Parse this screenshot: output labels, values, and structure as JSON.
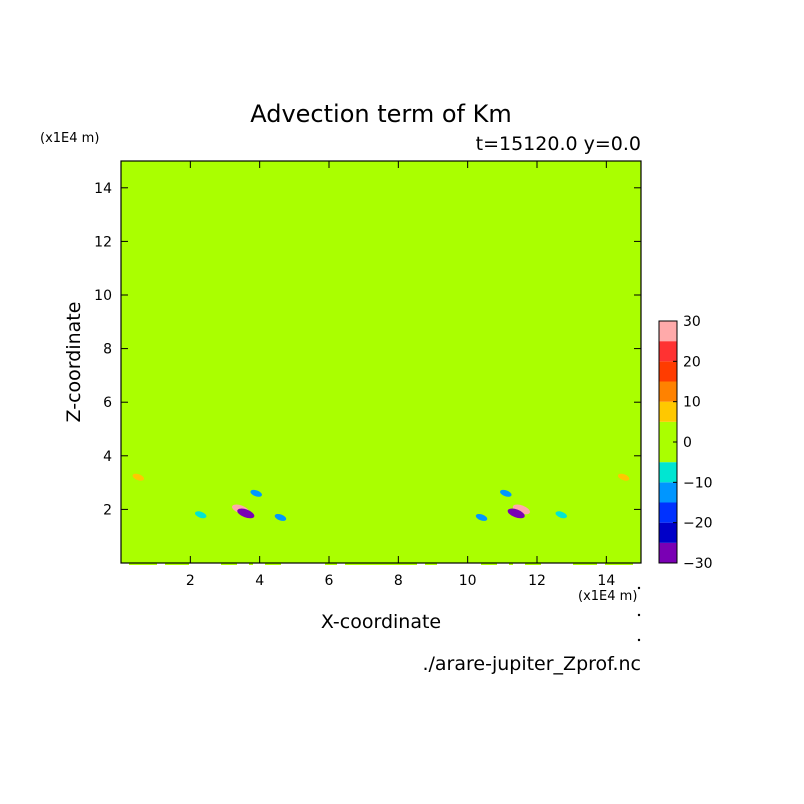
{
  "chart_data": {
    "type": "heatmap",
    "title": "Advection term of Km",
    "subtitle": "t=15120.0 y=0.0",
    "xlabel": "X-coordinate",
    "ylabel": "Z-coordinate",
    "x_unit": "(x1E4 m)",
    "y_unit": "(x1E4 m)",
    "xlim": [
      0,
      15
    ],
    "ylim": [
      0,
      15
    ],
    "xticks": [
      2,
      4,
      6,
      8,
      10,
      12,
      14
    ],
    "yticks": [
      2,
      4,
      6,
      8,
      10,
      12,
      14
    ],
    "colorbar": {
      "levels": [
        -30,
        -25,
        -20,
        -15,
        -10,
        -5,
        0,
        5,
        10,
        15,
        20,
        25,
        30
      ],
      "tick_labels": [
        "30",
        "20",
        "10",
        "0",
        "−10",
        "−20",
        "−30"
      ],
      "tick_values": [
        30,
        20,
        10,
        0,
        -10,
        -20,
        -30
      ],
      "colors": [
        "#7a00b4",
        "#0000c8",
        "#0032ff",
        "#0096ff",
        "#00e6d2",
        "#aaff00",
        "#aaff00",
        "#ffc800",
        "#ff8200",
        "#ff3c00",
        "#ff3232",
        "#ffaaaa"
      ]
    },
    "features": [
      {
        "x": 3.45,
        "z": 2.0,
        "value": 28
      },
      {
        "x": 3.6,
        "z": 1.85,
        "value": -28
      },
      {
        "x": 11.55,
        "z": 2.0,
        "value": 28
      },
      {
        "x": 11.4,
        "z": 1.85,
        "value": -28
      },
      {
        "x": 3.9,
        "z": 2.6,
        "value": -14
      },
      {
        "x": 11.1,
        "z": 2.6,
        "value": -14
      },
      {
        "x": 4.6,
        "z": 1.7,
        "value": -12
      },
      {
        "x": 10.4,
        "z": 1.7,
        "value": -12
      },
      {
        "x": 0.5,
        "z": 3.2,
        "value": 8
      },
      {
        "x": 14.5,
        "z": 3.2,
        "value": 8
      },
      {
        "x": 2.3,
        "z": 1.8,
        "value": -10
      },
      {
        "x": 12.7,
        "z": 1.8,
        "value": -10
      }
    ]
  },
  "footer": {
    "filename": "./arare-jupiter_Zprof.nc"
  }
}
